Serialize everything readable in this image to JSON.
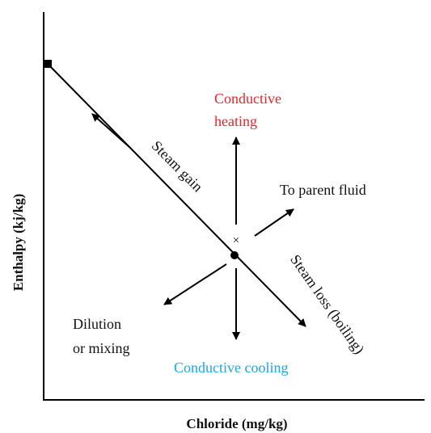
{
  "axes": {
    "x_label": "Chloride (mg/kg)",
    "y_label": "Enthalpy (kj/kg)"
  },
  "labels": {
    "conductive_heating": [
      "Conductive",
      "heating"
    ],
    "steam_gain": "Steam gain",
    "to_parent_fluid": "To parent fluid",
    "steam_loss": "Steam loss (boiling)",
    "dilution": [
      "Dilution",
      "or mixing"
    ],
    "conductive_cooling": "Conductive cooling",
    "cross": "×"
  }
}
